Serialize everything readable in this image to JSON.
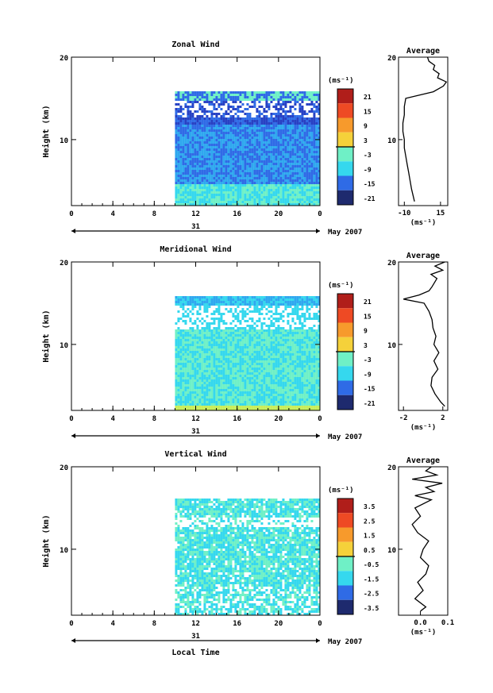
{
  "chart_data": [
    {
      "type": "heatmap",
      "title": "Zonal Wind",
      "ylabel": "Height (km)",
      "yticks": [
        "20",
        "10"
      ],
      "xticks": [
        "0",
        "4",
        "8",
        "12",
        "16",
        "20",
        "0"
      ],
      "date_label": "31",
      "month_label": "May 2007",
      "unit_label": "(ms⁻¹)",
      "colorbar_ticks": [
        "21",
        "15",
        "9",
        "3",
        "-3",
        "-9",
        "-15",
        "-21"
      ],
      "data_start_hour": 10,
      "ylim": [
        2,
        20
      ],
      "xlim": [
        0,
        24
      ],
      "profile": {
        "title": "Average",
        "xticks": [
          "-10",
          "15"
        ],
        "xlim": [
          -14,
          20
        ],
        "xlabel": "(ms⁻¹)",
        "yticks": [
          "20",
          "10"
        ],
        "heights": [
          2.5,
          4,
          5,
          6,
          7,
          8,
          9,
          10,
          11,
          12,
          13,
          14,
          15,
          15.8,
          16.5,
          17,
          17.5,
          18,
          18.5,
          19,
          19.5,
          20
        ],
        "values": [
          -3,
          -5,
          -6,
          -7,
          -8,
          -9,
          -10,
          -10,
          -11,
          -11,
          -10,
          -10,
          -9,
          10,
          17,
          19,
          13,
          14,
          10,
          11,
          7,
          6
        ]
      }
    },
    {
      "type": "heatmap",
      "title": "Meridional Wind",
      "ylabel": "Height (km)",
      "yticks": [
        "20",
        "10"
      ],
      "xticks": [
        "0",
        "4",
        "8",
        "12",
        "16",
        "20",
        "0"
      ],
      "date_label": "31",
      "month_label": "May 2007",
      "unit_label": "(ms⁻¹)",
      "colorbar_ticks": [
        "21",
        "15",
        "9",
        "3",
        "-3",
        "-9",
        "-15",
        "-21"
      ],
      "data_start_hour": 10,
      "ylim": [
        2,
        20
      ],
      "xlim": [
        0,
        24
      ],
      "profile": {
        "title": "Average",
        "xticks": [
          "-2",
          "2"
        ],
        "xlim": [
          -2.5,
          2.5
        ],
        "xlabel": "(ms⁻¹)",
        "yticks": [
          "20",
          "10"
        ],
        "heights": [
          2.5,
          3,
          4,
          5,
          6,
          7,
          8,
          9,
          10,
          11,
          12,
          13,
          14,
          15,
          15.5,
          16,
          16.5,
          17,
          18,
          18.5,
          19,
          19.5,
          20
        ],
        "values": [
          2.2,
          1.8,
          1.2,
          0.8,
          0.9,
          1.5,
          1.1,
          1.6,
          1.1,
          1.3,
          1.0,
          0.9,
          0.6,
          0.1,
          -2.0,
          -0.4,
          0.6,
          0.9,
          1.4,
          0.8,
          2.0,
          1.2,
          2.2
        ]
      }
    },
    {
      "type": "heatmap",
      "title": "Vertical Wind",
      "ylabel": "Height (km)",
      "yticks": [
        "20",
        "10"
      ],
      "xticks": [
        "0",
        "4",
        "8",
        "12",
        "16",
        "20",
        "0"
      ],
      "date_label": "31",
      "month_label": "May 2007",
      "unit_label": "(ms⁻¹)",
      "colorbar_ticks": [
        "3.5",
        "2.5",
        "1.5",
        "0.5",
        "-0.5",
        "-1.5",
        "-2.5",
        "-3.5"
      ],
      "data_start_hour": 10,
      "ylim": [
        2,
        20
      ],
      "xlim": [
        0,
        24
      ],
      "xlabel": "Local Time",
      "profile": {
        "title": "Average",
        "xticks": [
          "0.0",
          "0.1"
        ],
        "xlim": [
          -0.08,
          0.1
        ],
        "xlabel": "(ms⁻¹)",
        "yticks": [
          "20",
          "10"
        ],
        "heights": [
          2.5,
          3,
          4,
          5,
          6,
          7,
          8,
          9,
          10,
          11,
          12,
          13,
          14,
          15,
          16,
          16.5,
          17,
          17.5,
          18,
          18.5,
          19,
          19.5,
          20
        ],
        "values": [
          0.0,
          0.02,
          -0.02,
          0.01,
          -0.01,
          0.02,
          0.03,
          0.0,
          0.01,
          0.03,
          -0.01,
          -0.03,
          0.0,
          -0.02,
          0.04,
          -0.02,
          0.05,
          0.02,
          0.08,
          -0.03,
          0.06,
          0.02,
          0.04
        ]
      }
    }
  ],
  "palette": [
    "#1e2a6e",
    "#2741c4",
    "#2f6be6",
    "#2fa8ef",
    "#35d8ee",
    "#6ff0c6",
    "#c8ee5a",
    "#f5d13a",
    "#f79a2c",
    "#ee4a24",
    "#b01e1a"
  ]
}
